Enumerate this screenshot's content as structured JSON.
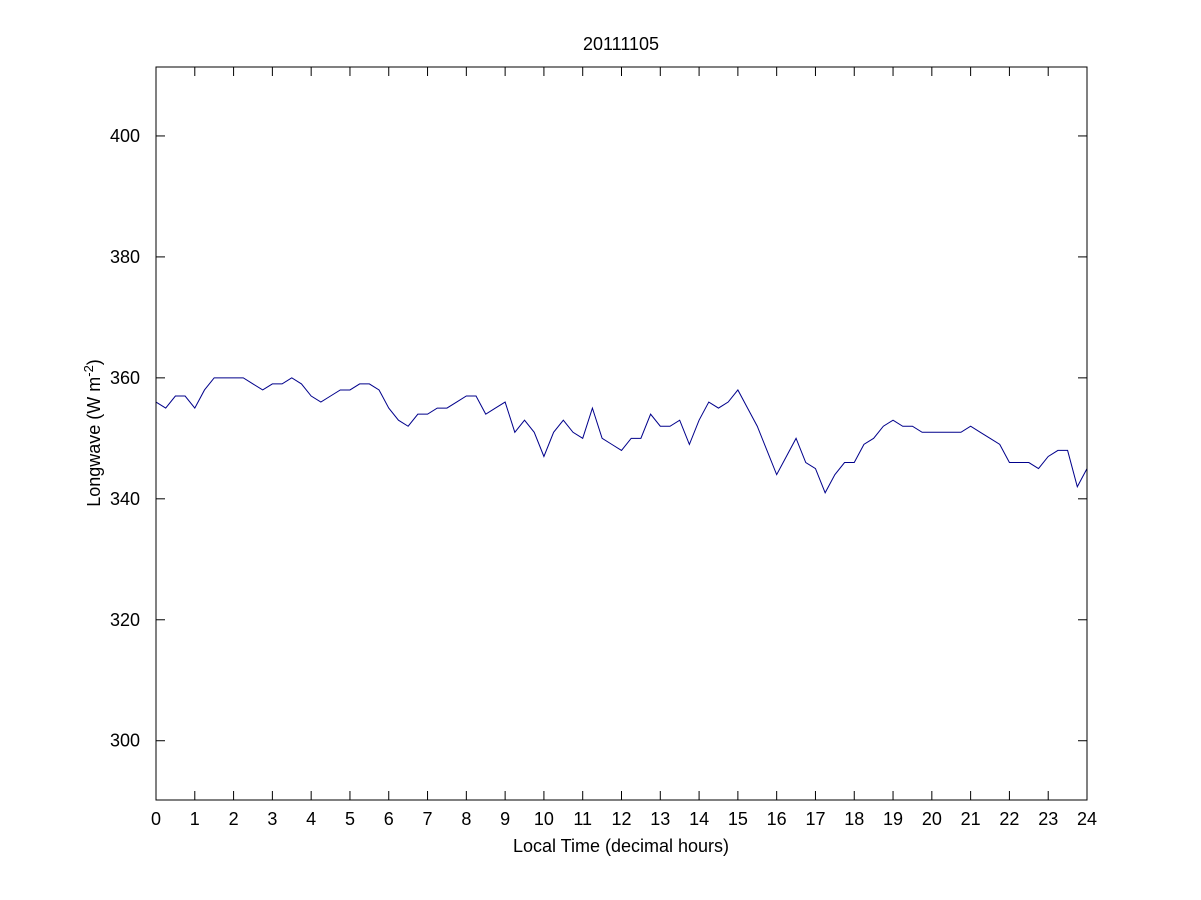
{
  "chart_data": {
    "type": "line",
    "title": "20111105",
    "xlabel": "Local Time (decimal hours)",
    "ylabel": {
      "text": "Longwave (W m",
      "superscript": "-2",
      "suffix": ")"
    },
    "xlim": [
      0,
      24
    ],
    "xticks": [
      0,
      1,
      2,
      3,
      4,
      5,
      6,
      7,
      8,
      9,
      10,
      11,
      12,
      13,
      14,
      15,
      16,
      17,
      18,
      19,
      20,
      21,
      22,
      23,
      24
    ],
    "ylim": [
      290.2,
      411.4
    ],
    "yticks": [
      300,
      320,
      340,
      360,
      380,
      400
    ],
    "grid": false,
    "x": [
      0,
      0.25,
      0.5,
      0.75,
      1,
      1.25,
      1.5,
      1.75,
      2,
      2.25,
      2.5,
      2.75,
      3,
      3.25,
      3.5,
      3.75,
      4,
      4.25,
      4.5,
      4.75,
      5,
      5.25,
      5.5,
      5.75,
      6,
      6.25,
      6.5,
      6.75,
      7,
      7.25,
      7.5,
      7.75,
      8,
      8.25,
      8.5,
      8.75,
      9,
      9.25,
      9.5,
      9.75,
      10,
      10.25,
      10.5,
      10.75,
      11,
      11.25,
      11.5,
      11.75,
      12,
      12.25,
      12.5,
      12.75,
      13,
      13.25,
      13.5,
      13.75,
      14,
      14.25,
      14.5,
      14.75,
      15,
      15.25,
      15.5,
      15.75,
      16,
      16.25,
      16.5,
      16.75,
      17,
      17.25,
      17.5,
      17.75,
      18,
      18.25,
      18.5,
      18.75,
      19,
      19.25,
      19.5,
      19.75,
      20,
      20.25,
      20.5,
      20.75,
      21,
      21.25,
      21.5,
      21.75,
      22,
      22.25,
      22.5,
      22.75,
      23,
      23.25,
      23.5,
      23.75,
      24
    ],
    "series": [
      {
        "color": "#00008b",
        "values": [
          356,
          355,
          357,
          357,
          355,
          358,
          360,
          360,
          360,
          360,
          359,
          358,
          359,
          359,
          360,
          359,
          357,
          356,
          357,
          358,
          358,
          359,
          359,
          358,
          355,
          353,
          352,
          354,
          354,
          355,
          355,
          356,
          357,
          357,
          354,
          355,
          356,
          351,
          353,
          351,
          347,
          351,
          353,
          351,
          350,
          355,
          350,
          349,
          348,
          350,
          350,
          354,
          352,
          352,
          353,
          349,
          353,
          356,
          355,
          356,
          358,
          355,
          352,
          348,
          344,
          347,
          350,
          346,
          345,
          341,
          344,
          346,
          346,
          349,
          350,
          352,
          353,
          352,
          352,
          351,
          351,
          351,
          351,
          351,
          352,
          351,
          350,
          349,
          346,
          346,
          346,
          345,
          347,
          348,
          348,
          342,
          345
        ]
      }
    ]
  }
}
